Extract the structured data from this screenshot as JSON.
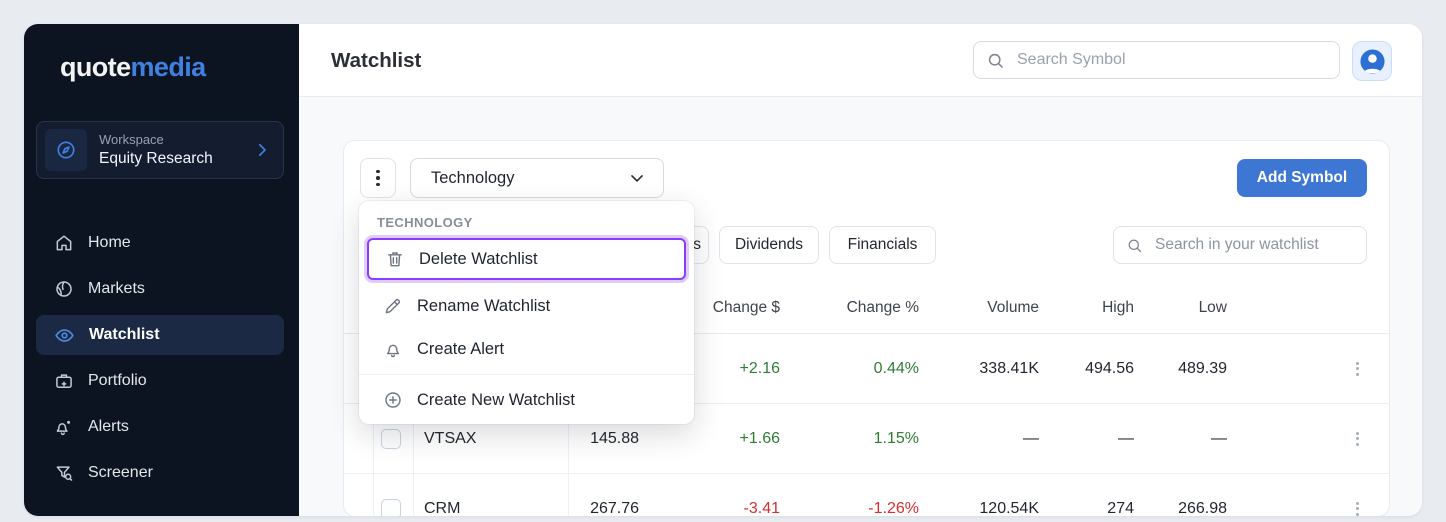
{
  "brand": {
    "logo_part1": "quote",
    "logo_part2": "media"
  },
  "sidebar": {
    "workspace": {
      "label": "Workspace",
      "value": "Equity Research",
      "icon": "compass-icon"
    },
    "items": [
      {
        "label": "Home",
        "icon": "home-icon",
        "active": false
      },
      {
        "label": "Markets",
        "icon": "globe-icon",
        "active": false
      },
      {
        "label": "Watchlist",
        "icon": "eye-icon",
        "active": true
      },
      {
        "label": "Portfolio",
        "icon": "portfolio-icon",
        "active": false
      },
      {
        "label": "Alerts",
        "icon": "alerts-icon",
        "active": false
      },
      {
        "label": "Screener",
        "icon": "screener-icon",
        "active": false
      }
    ]
  },
  "topbar": {
    "title": "Watchlist",
    "search_placeholder": "Search Symbol"
  },
  "toolbar": {
    "selected_watchlist": "Technology",
    "add_symbol_label": "Add Symbol"
  },
  "context_menu": {
    "section_label": "TECHNOLOGY",
    "items": [
      {
        "label": "Delete Watchlist",
        "icon": "trash-icon",
        "highlighted": true
      },
      {
        "label": "Rename Watchlist",
        "icon": "pencil-icon",
        "highlighted": false
      },
      {
        "label": "Create Alert",
        "icon": "bell-icon",
        "highlighted": false
      },
      {
        "label": "Create New Watchlist",
        "icon": "plus-circle-icon",
        "highlighted": false
      }
    ]
  },
  "tabs": {
    "partial_tab_text": "s",
    "items": [
      "Dividends",
      "Financials"
    ],
    "watchlist_search_placeholder": "Search in your watchlist"
  },
  "table": {
    "visible_columns": [
      "Change $",
      "Change %",
      "Volume",
      "High",
      "Low"
    ],
    "rows": [
      {
        "symbol": "",
        "price": "",
        "change": "+2.16",
        "change_pct": "0.44%",
        "volume": "338.41K",
        "high": "494.56",
        "low": "489.39",
        "trend": "up"
      },
      {
        "symbol": "VTSAX",
        "price": "145.88",
        "change": "+1.66",
        "change_pct": "1.15%",
        "volume": "—",
        "high": "—",
        "low": "—",
        "trend": "up"
      },
      {
        "symbol": "CRM",
        "price": "267.76",
        "change": "-3.41",
        "change_pct": "-1.26%",
        "volume": "120.54K",
        "high": "274",
        "low": "266.98",
        "trend": "down"
      }
    ]
  },
  "colors": {
    "accent_blue": "#3d76d3",
    "positive_green": "#2e7d32",
    "negative_red": "#d32f2f",
    "highlight_purple": "#8b3dff",
    "sidebar_bg": "#0c1422"
  }
}
